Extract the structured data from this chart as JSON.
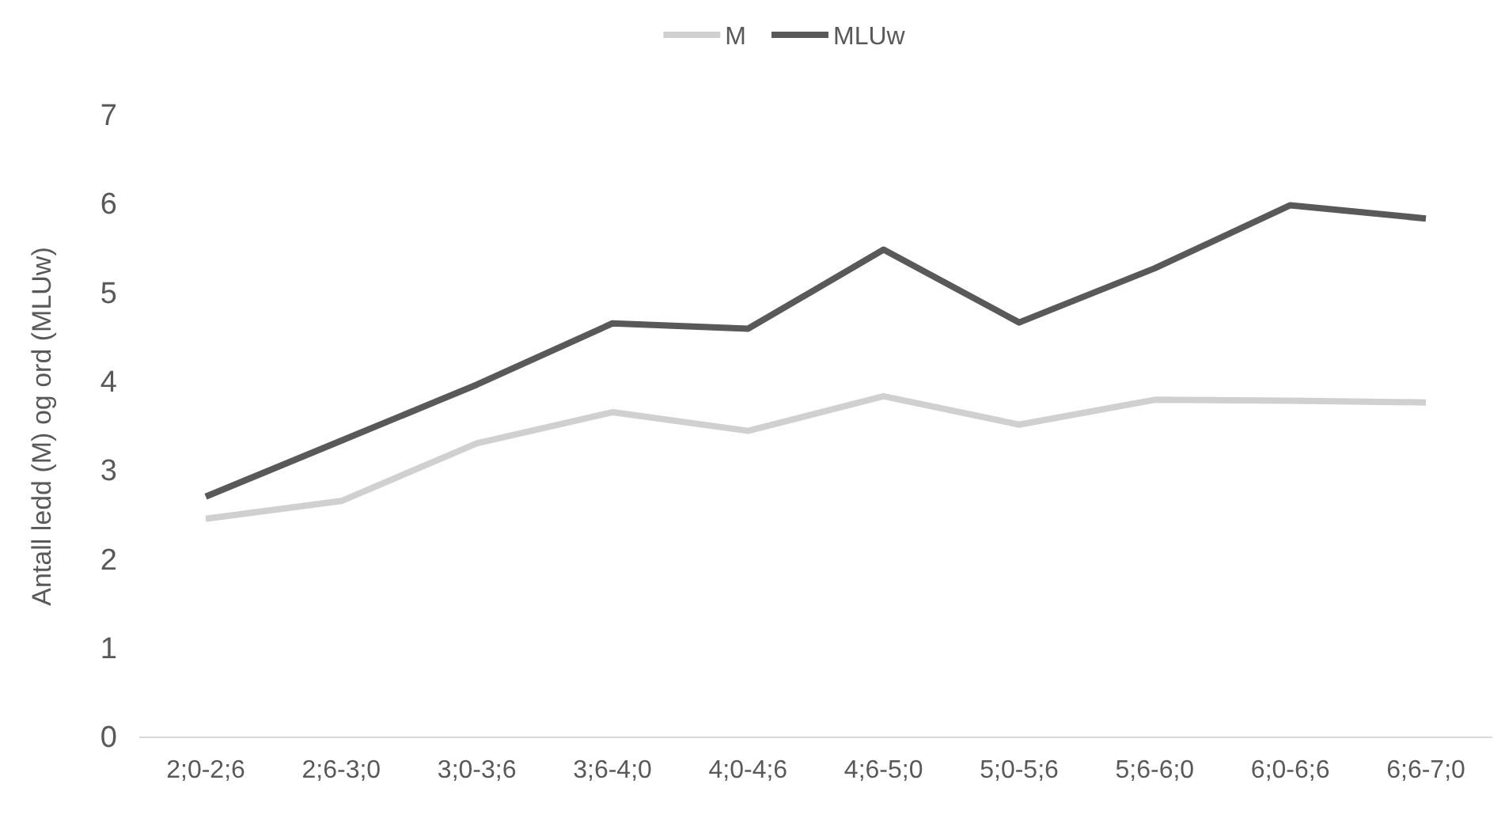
{
  "chart_data": {
    "type": "line",
    "ylabel": "Antall ledd (M) og ord (MLUw)",
    "categories": [
      "2;0-2;6",
      "2;6-3;0",
      "3;0-3;6",
      "3;6-4;0",
      "4;0-4;6",
      "4;6-5;0",
      "5;0-5;6",
      "5;6-6;0",
      "6;0-6;6",
      "6;6-7;0"
    ],
    "series": [
      {
        "name": "M",
        "color": "#d0d0d0",
        "values": [
          2.46,
          2.66,
          3.31,
          3.66,
          3.45,
          3.84,
          3.52,
          3.8,
          3.79,
          3.77
        ]
      },
      {
        "name": "MLUw",
        "color": "#595959",
        "values": [
          2.71,
          3.34,
          3.97,
          4.66,
          4.6,
          5.49,
          4.67,
          5.28,
          5.99,
          5.84
        ]
      }
    ],
    "ylim": [
      0,
      7
    ],
    "yticks": [
      0,
      1,
      2,
      3,
      4,
      5,
      6,
      7
    ],
    "grid": false,
    "legend": "top",
    "marker": "none",
    "line_style": "solid"
  }
}
